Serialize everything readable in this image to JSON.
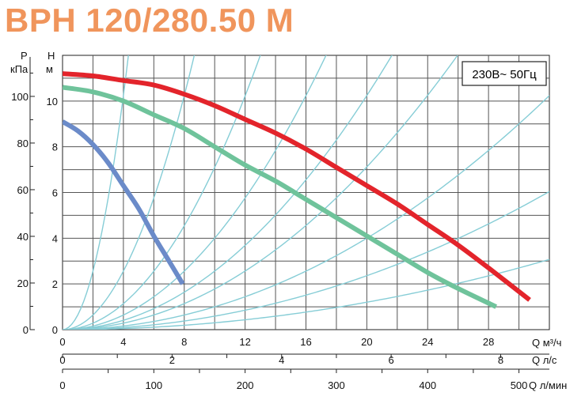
{
  "title": "BPH 120/280.50 M",
  "title_color": "#f0955c",
  "chart_data": {
    "type": "line",
    "title": "BPH 120/280.50 M",
    "supply_label": "230В~ 50Гц",
    "left_axis": {
      "label_p": "P",
      "label_unit": "кПа",
      "range": [
        0,
        117.6
      ],
      "ticks": [
        "0",
        "20",
        "40",
        "60",
        "80",
        "100"
      ]
    },
    "head_axis": {
      "label_h": "H",
      "label_unit": "м",
      "range": [
        0,
        12
      ],
      "ticks": [
        "0",
        "2",
        "4",
        "6",
        "8",
        "10"
      ]
    },
    "x_axis_m3h": {
      "label": "Q м³/ч",
      "range": [
        0,
        32
      ],
      "ticks": [
        "0",
        "4",
        "8",
        "12",
        "16",
        "20",
        "24",
        "28"
      ]
    },
    "x_axis_ls": {
      "label": "Q л/с",
      "ticks": [
        "0",
        "2",
        "4",
        "6",
        "8"
      ]
    },
    "x_axis_lmin": {
      "label": "Q л/мин",
      "ticks": [
        "0",
        "100",
        "200",
        "300",
        "400",
        "500"
      ]
    },
    "grid": true,
    "series": [
      {
        "color": "#e3242b",
        "x": [
          0,
          2,
          4,
          6,
          8,
          10,
          12,
          14,
          16,
          18,
          20,
          22,
          24,
          26,
          28,
          30.7
        ],
        "y": [
          11.2,
          11.1,
          10.9,
          10.7,
          10.3,
          9.8,
          9.2,
          8.6,
          7.9,
          7.1,
          6.3,
          5.5,
          4.6,
          3.7,
          2.7,
          1.3
        ]
      },
      {
        "color": "#6fc39b",
        "x": [
          0,
          2,
          4,
          6,
          8,
          10,
          12,
          14,
          16,
          18,
          20,
          22,
          24,
          26,
          28.5
        ],
        "y": [
          10.6,
          10.4,
          10.0,
          9.4,
          8.8,
          8.0,
          7.2,
          6.5,
          5.7,
          4.9,
          4.1,
          3.3,
          2.5,
          1.8,
          1.0
        ]
      },
      {
        "color": "#6b8bc9",
        "x": [
          0,
          1,
          2,
          3,
          4,
          5,
          6,
          7,
          7.9
        ],
        "y": [
          9.1,
          8.7,
          8.1,
          7.3,
          6.3,
          5.3,
          4.1,
          3.0,
          2.0
        ]
      }
    ],
    "system_curves_k": [
      64,
      16,
      7.1,
      4,
      2.56,
      1.78,
      1,
      0.59,
      0.3
    ]
  }
}
